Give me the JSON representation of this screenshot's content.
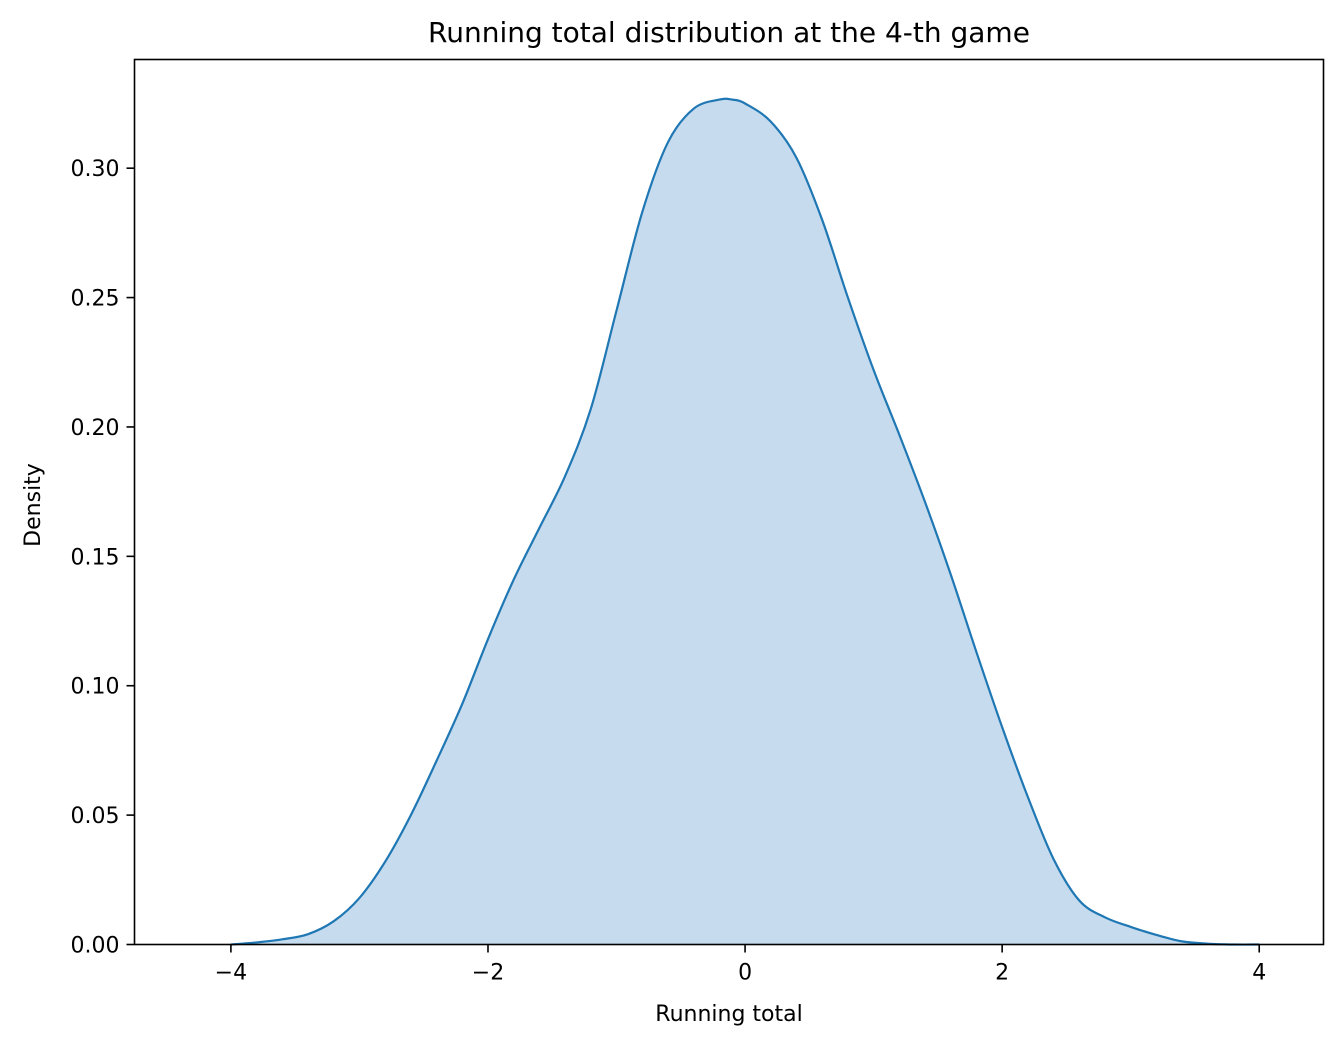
{
  "chart_data": {
    "type": "area",
    "title": "Running total distribution at the 4-th game",
    "xlabel": "Running total",
    "ylabel": "Density",
    "xlim": [
      -4.75,
      4.5
    ],
    "ylim": [
      0,
      0.342
    ],
    "x_ticks": [
      -4,
      -2,
      0,
      2,
      4
    ],
    "x_tick_labels": [
      "−4",
      "−2",
      "0",
      "2",
      "4"
    ],
    "y_ticks": [
      0.0,
      0.05,
      0.1,
      0.15,
      0.2,
      0.25,
      0.3
    ],
    "y_tick_labels": [
      "0.00",
      "0.05",
      "0.10",
      "0.15",
      "0.20",
      "0.25",
      "0.30"
    ],
    "grid": false,
    "colors": {
      "line": "#1f77b4",
      "fill": "#c6dbed"
    },
    "series": [
      {
        "x": [
          -4.0,
          -3.8,
          -3.6,
          -3.4,
          -3.2,
          -3.0,
          -2.8,
          -2.6,
          -2.4,
          -2.2,
          -2.0,
          -1.8,
          -1.6,
          -1.4,
          -1.2,
          -1.0,
          -0.8,
          -0.6,
          -0.4,
          -0.2,
          -0.1,
          0.0,
          0.2,
          0.4,
          0.6,
          0.8,
          1.0,
          1.2,
          1.4,
          1.6,
          1.8,
          2.0,
          2.2,
          2.4,
          2.6,
          2.8,
          3.0,
          3.2,
          3.4,
          3.6,
          3.8,
          4.0
        ],
        "y": [
          0.0,
          0.0008,
          0.002,
          0.004,
          0.009,
          0.018,
          0.032,
          0.05,
          0.071,
          0.093,
          0.118,
          0.141,
          0.161,
          0.181,
          0.207,
          0.245,
          0.283,
          0.31,
          0.323,
          0.3265,
          0.3265,
          0.325,
          0.318,
          0.304,
          0.28,
          0.25,
          0.222,
          0.197,
          0.171,
          0.143,
          0.113,
          0.084,
          0.057,
          0.033,
          0.017,
          0.0105,
          0.0068,
          0.0037,
          0.0012,
          0.0003,
          0.0,
          0.0
        ]
      }
    ]
  }
}
